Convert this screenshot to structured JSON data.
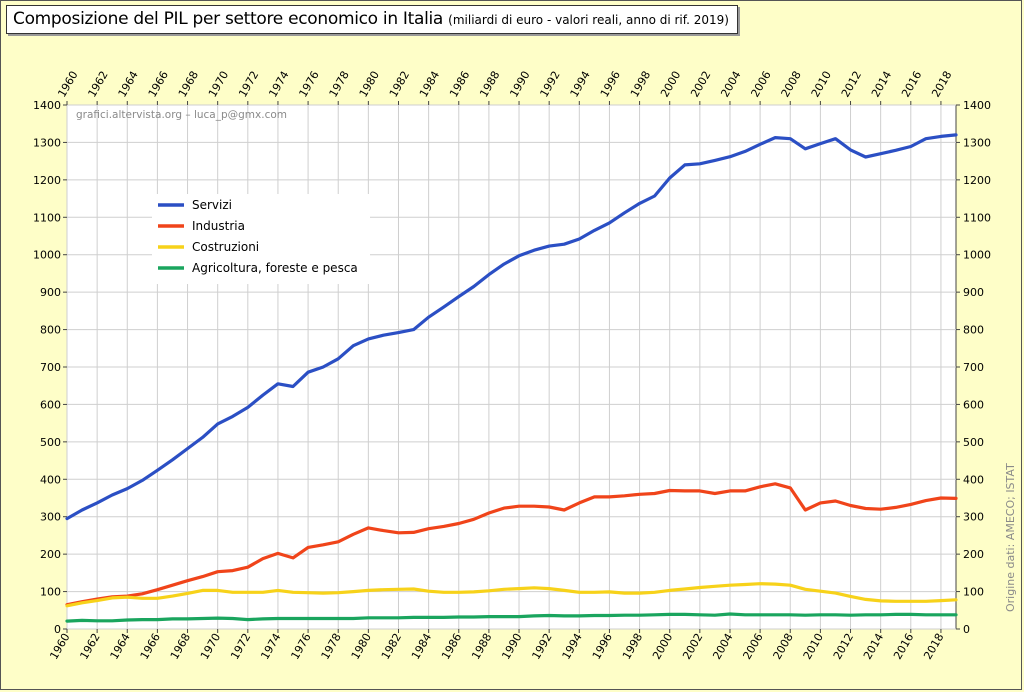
{
  "title": "Composizione del PIL per settore economico in Italia",
  "subtitle": "(miliardi di euro - valori reali, anno di rif. 2019)",
  "watermark": "grafici.altervista.org – luca_p@gmx.com",
  "source_note": "Origine dati: AMECO; ISTAT",
  "colors": {
    "background": "#fefec8",
    "plot_background": "#ffffff",
    "grid": "#cfcfcf",
    "Servizi": "#2b4fc4",
    "Industria": "#f0441a",
    "Costruzioni": "#f7d21a",
    "Agricoltura": "#1aa55e"
  },
  "chart_data": {
    "type": "line",
    "ylim": [
      0,
      1400
    ],
    "xlim": [
      1960,
      2019
    ],
    "grid": true,
    "legend_position": "top-left",
    "y_ticks": [
      0,
      100,
      200,
      300,
      400,
      500,
      600,
      700,
      800,
      900,
      1000,
      1100,
      1200,
      1300,
      1400
    ],
    "x_tick_labels": [
      "1960",
      "1962",
      "1964",
      "1966",
      "1968",
      "1970",
      "1972",
      "1974",
      "1976",
      "1978",
      "1980",
      "1982",
      "1984",
      "1986",
      "1988",
      "1990",
      "1992",
      "1994",
      "1996",
      "1998",
      "2000",
      "2002",
      "2004",
      "2006",
      "2008",
      "2010",
      "2012",
      "2014",
      "2016",
      "2018"
    ],
    "x": [
      1960,
      1961,
      1962,
      1963,
      1964,
      1965,
      1966,
      1967,
      1968,
      1969,
      1970,
      1971,
      1972,
      1973,
      1974,
      1975,
      1976,
      1977,
      1978,
      1979,
      1980,
      1981,
      1982,
      1983,
      1984,
      1985,
      1986,
      1987,
      1988,
      1989,
      1990,
      1991,
      1992,
      1993,
      1994,
      1995,
      1996,
      1997,
      1998,
      1999,
      2000,
      2001,
      2002,
      2003,
      2004,
      2005,
      2006,
      2007,
      2008,
      2009,
      2010,
      2011,
      2012,
      2013,
      2014,
      2015,
      2016,
      2017,
      2018,
      2019
    ],
    "series": [
      {
        "name": "Servizi",
        "color": "#2b4fc4",
        "values": [
          295,
          318,
          337,
          358,
          375,
          397,
          424,
          452,
          482,
          512,
          548,
          568,
          592,
          625,
          655,
          648,
          686,
          700,
          722,
          757,
          775,
          785,
          792,
          800,
          833,
          860,
          888,
          915,
          947,
          975,
          997,
          1012,
          1023,
          1028,
          1042,
          1065,
          1085,
          1112,
          1137,
          1157,
          1205,
          1240,
          1243,
          1252,
          1262,
          1276,
          1295,
          1313,
          1310,
          1283,
          1297,
          1310,
          1280,
          1261,
          1270,
          1279,
          1289,
          1310,
          1316,
          1320
        ]
      },
      {
        "name": "Industria",
        "color": "#f0441a",
        "values": [
          65,
          73,
          80,
          86,
          88,
          94,
          105,
          117,
          129,
          140,
          153,
          156,
          165,
          188,
          202,
          190,
          218,
          225,
          233,
          253,
          270,
          263,
          257,
          258,
          268,
          274,
          282,
          293,
          310,
          323,
          328,
          328,
          326,
          318,
          337,
          353,
          353,
          356,
          360,
          362,
          370,
          369,
          369,
          362,
          369,
          369,
          380,
          388,
          377,
          318,
          337,
          342,
          330,
          322,
          320,
          325,
          333,
          343,
          350,
          349
        ]
      },
      {
        "name": "Costruzioni",
        "color": "#f7d21a",
        "values": [
          62,
          70,
          76,
          83,
          85,
          82,
          82,
          88,
          95,
          103,
          103,
          98,
          98,
          98,
          103,
          98,
          97,
          96,
          97,
          100,
          103,
          105,
          106,
          107,
          101,
          98,
          98,
          99,
          102,
          106,
          108,
          110,
          108,
          103,
          98,
          98,
          99,
          96,
          96,
          98,
          103,
          107,
          111,
          114,
          117,
          119,
          121,
          120,
          117,
          106,
          101,
          96,
          87,
          79,
          75,
          74,
          74,
          74,
          76,
          78
        ]
      },
      {
        "name": "Agricoltura, foreste e pesca",
        "color": "#1aa55e",
        "values": [
          21,
          23,
          22,
          22,
          24,
          25,
          25,
          27,
          27,
          28,
          29,
          28,
          25,
          27,
          28,
          28,
          28,
          28,
          28,
          28,
          30,
          30,
          30,
          31,
          31,
          31,
          32,
          32,
          33,
          33,
          33,
          35,
          36,
          35,
          35,
          36,
          36,
          37,
          37,
          38,
          39,
          39,
          38,
          37,
          40,
          38,
          38,
          38,
          38,
          37,
          38,
          38,
          37,
          38,
          38,
          39,
          39,
          38,
          38,
          38
        ]
      }
    ]
  }
}
